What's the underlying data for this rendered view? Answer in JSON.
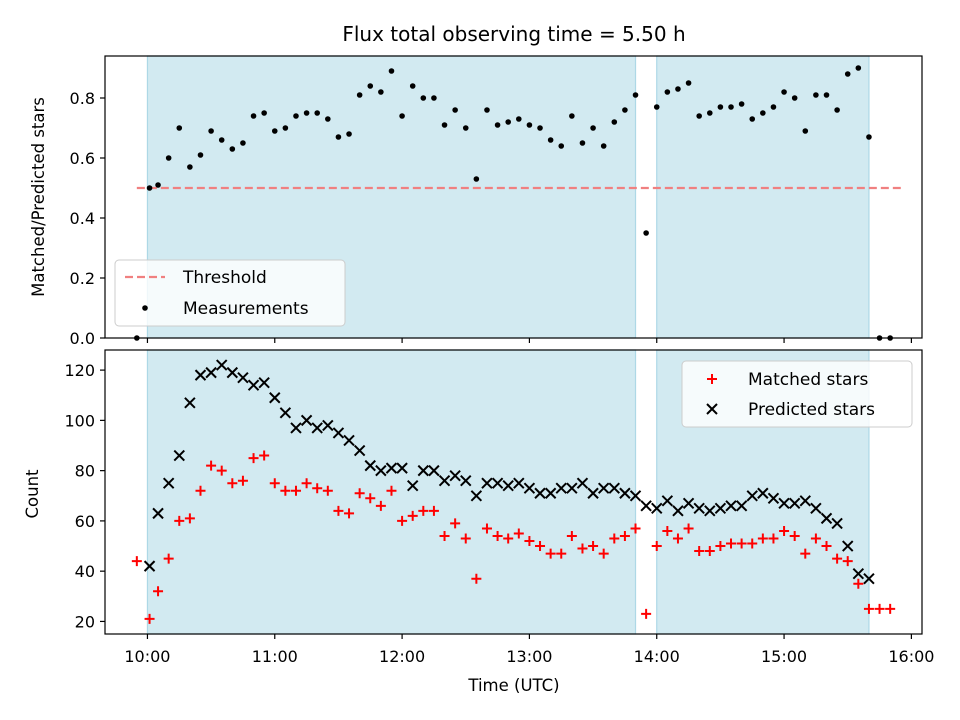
{
  "chart_data": [
    {
      "type": "scatter",
      "title": "Flux total observing time = 5.50 h",
      "ylabel": "Matched/Predicted stars",
      "xlabel": "",
      "xlim": [
        "09:40",
        "16:05"
      ],
      "ylim": [
        0.0,
        0.94
      ],
      "yticks": [
        "0.0",
        "0.2",
        "0.4",
        "0.6",
        "0.8"
      ],
      "threshold": {
        "name": "Threshold",
        "value": 0.5,
        "x_range": [
          "09:55",
          "15:55"
        ],
        "color": "#f08080",
        "style": "dashed"
      },
      "observing_windows": [
        [
          "10:00",
          "13:50"
        ],
        [
          "14:00",
          "15:40"
        ]
      ],
      "window_color": "#add8e6",
      "legend": {
        "position": "lower-left",
        "entries": [
          "Threshold",
          "Measurements"
        ]
      },
      "series": [
        {
          "name": "Measurements",
          "color": "#000000",
          "marker": "dot",
          "x": [
            "09:55",
            "10:01",
            "10:05",
            "10:10",
            "10:15",
            "10:20",
            "10:25",
            "10:30",
            "10:35",
            "10:40",
            "10:45",
            "10:50",
            "10:55",
            "11:00",
            "11:05",
            "11:10",
            "11:15",
            "11:20",
            "11:25",
            "11:30",
            "11:35",
            "11:40",
            "11:45",
            "11:50",
            "11:55",
            "12:00",
            "12:05",
            "12:10",
            "12:15",
            "12:20",
            "12:25",
            "12:30",
            "12:35",
            "12:40",
            "12:45",
            "12:50",
            "12:55",
            "13:00",
            "13:05",
            "13:10",
            "13:15",
            "13:20",
            "13:25",
            "13:30",
            "13:35",
            "13:40",
            "13:45",
            "13:50",
            "13:55",
            "14:00",
            "14:05",
            "14:10",
            "14:15",
            "14:20",
            "14:25",
            "14:30",
            "14:35",
            "14:40",
            "14:45",
            "14:50",
            "14:55",
            "15:00",
            "15:05",
            "15:10",
            "15:15",
            "15:20",
            "15:25",
            "15:30",
            "15:35",
            "15:40",
            "15:45",
            "15:50"
          ],
          "values": [
            0.0,
            0.5,
            0.51,
            0.6,
            0.7,
            0.57,
            0.61,
            0.69,
            0.66,
            0.63,
            0.65,
            0.74,
            0.75,
            0.69,
            0.7,
            0.74,
            0.75,
            0.75,
            0.73,
            0.67,
            0.68,
            0.81,
            0.84,
            0.82,
            0.89,
            0.74,
            0.84,
            0.8,
            0.8,
            0.71,
            0.76,
            0.7,
            0.53,
            0.76,
            0.71,
            0.72,
            0.73,
            0.71,
            0.7,
            0.66,
            0.64,
            0.74,
            0.65,
            0.7,
            0.64,
            0.72,
            0.76,
            0.81,
            0.35,
            0.77,
            0.82,
            0.83,
            0.85,
            0.74,
            0.75,
            0.77,
            0.77,
            0.78,
            0.73,
            0.75,
            0.77,
            0.82,
            0.8,
            0.69,
            0.81,
            0.81,
            0.76,
            0.88,
            0.9,
            0.67,
            0.0,
            0.0
          ]
        }
      ]
    },
    {
      "type": "scatter",
      "title": "",
      "ylabel": "Count",
      "xlabel": "Time (UTC)",
      "xlim": [
        "09:40",
        "16:05"
      ],
      "ylim": [
        15,
        128
      ],
      "xticks": [
        "10:00",
        "11:00",
        "12:00",
        "13:00",
        "14:00",
        "15:00",
        "16:00"
      ],
      "yticks": [
        "20",
        "40",
        "60",
        "80",
        "100",
        "120"
      ],
      "observing_windows": [
        [
          "10:00",
          "13:50"
        ],
        [
          "14:00",
          "15:40"
        ]
      ],
      "window_color": "#add8e6",
      "legend": {
        "position": "upper-right",
        "entries": [
          "Matched stars",
          "Predicted stars"
        ]
      },
      "series": [
        {
          "name": "Matched stars",
          "color": "#ff0000",
          "marker": "plus",
          "x": [
            "09:55",
            "10:01",
            "10:05",
            "10:10",
            "10:15",
            "10:20",
            "10:25",
            "10:30",
            "10:35",
            "10:40",
            "10:45",
            "10:50",
            "10:55",
            "11:00",
            "11:05",
            "11:10",
            "11:15",
            "11:20",
            "11:25",
            "11:30",
            "11:35",
            "11:40",
            "11:45",
            "11:50",
            "11:55",
            "12:00",
            "12:05",
            "12:10",
            "12:15",
            "12:20",
            "12:25",
            "12:30",
            "12:35",
            "12:40",
            "12:45",
            "12:50",
            "12:55",
            "13:00",
            "13:05",
            "13:10",
            "13:15",
            "13:20",
            "13:25",
            "13:30",
            "13:35",
            "13:40",
            "13:45",
            "13:50",
            "13:55",
            "14:00",
            "14:05",
            "14:10",
            "14:15",
            "14:20",
            "14:25",
            "14:30",
            "14:35",
            "14:40",
            "14:45",
            "14:50",
            "14:55",
            "15:00",
            "15:05",
            "15:10",
            "15:15",
            "15:20",
            "15:25",
            "15:30",
            "15:35",
            "15:40",
            "15:45",
            "15:50"
          ],
          "values": [
            44,
            21,
            32,
            45,
            60,
            61,
            72,
            82,
            80,
            75,
            76,
            85,
            86,
            75,
            72,
            72,
            75,
            73,
            72,
            64,
            63,
            71,
            69,
            66,
            72,
            60,
            62,
            64,
            64,
            54,
            59,
            53,
            37,
            57,
            54,
            53,
            55,
            52,
            50,
            47,
            47,
            54,
            49,
            50,
            47,
            53,
            54,
            57,
            23,
            50,
            56,
            53,
            57,
            48,
            48,
            50,
            51,
            51,
            51,
            53,
            53,
            56,
            54,
            47,
            53,
            50,
            45,
            44,
            35,
            25,
            25,
            25
          ]
        },
        {
          "name": "Predicted stars",
          "color": "#000000",
          "marker": "x",
          "x": [
            "10:01",
            "10:05",
            "10:10",
            "10:15",
            "10:20",
            "10:25",
            "10:30",
            "10:35",
            "10:40",
            "10:45",
            "10:50",
            "10:55",
            "11:00",
            "11:05",
            "11:10",
            "11:15",
            "11:20",
            "11:25",
            "11:30",
            "11:35",
            "11:40",
            "11:45",
            "11:50",
            "11:55",
            "12:00",
            "12:05",
            "12:10",
            "12:15",
            "12:20",
            "12:25",
            "12:30",
            "12:35",
            "12:40",
            "12:45",
            "12:50",
            "12:55",
            "13:00",
            "13:05",
            "13:10",
            "13:15",
            "13:20",
            "13:25",
            "13:30",
            "13:35",
            "13:40",
            "13:45",
            "13:50",
            "13:55",
            "14:00",
            "14:05",
            "14:10",
            "14:15",
            "14:20",
            "14:25",
            "14:30",
            "14:35",
            "14:40",
            "14:45",
            "14:50",
            "14:55",
            "15:00",
            "15:05",
            "15:10",
            "15:15",
            "15:20",
            "15:25",
            "15:30",
            "15:35",
            "15:40"
          ],
          "values": [
            42,
            63,
            75,
            86,
            107,
            118,
            119,
            122,
            119,
            117,
            114,
            115,
            109,
            103,
            97,
            100,
            97,
            98,
            95,
            92,
            88,
            82,
            80,
            81,
            81,
            74,
            80,
            80,
            76,
            78,
            76,
            70,
            75,
            75,
            74,
            75,
            73,
            71,
            71,
            73,
            73,
            75,
            71,
            73,
            73,
            71,
            70,
            66,
            65,
            68,
            64,
            67,
            65,
            64,
            65,
            66,
            66,
            70,
            71,
            69,
            67,
            67,
            68,
            65,
            61,
            59,
            50,
            39,
            37
          ]
        }
      ]
    }
  ]
}
